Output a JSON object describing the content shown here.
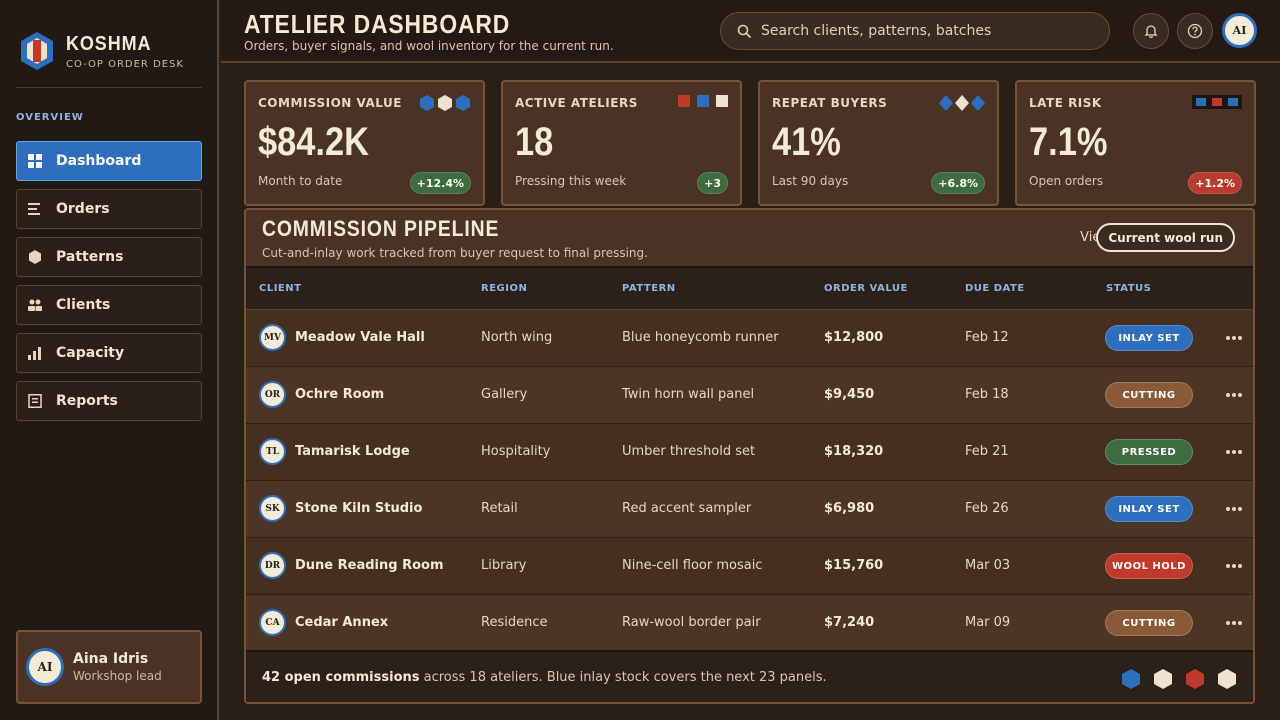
{
  "brand": {
    "name": "KOSHMA",
    "subtitle": "CO-OP ORDER DESK"
  },
  "sidebar": {
    "section_label": "OVERVIEW",
    "items": [
      {
        "label": "Dashboard",
        "icon": "grid-icon",
        "active": true
      },
      {
        "label": "Orders",
        "icon": "list-icon",
        "active": false
      },
      {
        "label": "Patterns",
        "icon": "hexagon-icon",
        "active": false
      },
      {
        "label": "Clients",
        "icon": "users-icon",
        "active": false
      },
      {
        "label": "Capacity",
        "icon": "bar-chart-icon",
        "active": false
      },
      {
        "label": "Reports",
        "icon": "report-icon",
        "active": false
      }
    ],
    "user": {
      "initials": "AI",
      "name": "Aina Idris",
      "role": "Workshop lead"
    }
  },
  "header": {
    "title": "ATELIER DASHBOARD",
    "subtitle": "Orders, buyer signals, and wool inventory for the current run.",
    "search_placeholder": "Search clients, patterns, batches",
    "avatar_initials": "AI"
  },
  "kpis": [
    {
      "title": "COMMISSION VALUE",
      "value": "$84.2K",
      "note": "Month to date",
      "delta": "+12.4%",
      "delta_tone": "positive"
    },
    {
      "title": "ACTIVE ATELIERS",
      "value": "18",
      "note": "Pressing this week",
      "delta": "+3",
      "delta_tone": "positive"
    },
    {
      "title": "REPEAT BUYERS",
      "value": "41%",
      "note": "Last 90 days",
      "delta": "+6.8%",
      "delta_tone": "positive"
    },
    {
      "title": "LATE RISK",
      "value": "7.1%",
      "note": "Open orders",
      "delta": "+1.2%",
      "delta_tone": "negative"
    }
  ],
  "pipeline": {
    "title": "COMMISSION PIPELINE",
    "subtitle": "Cut-and-inlay work tracked from buyer request to final pressing.",
    "view_label": "View",
    "view_value": "Current wool run",
    "columns": [
      "CLIENT",
      "REGION",
      "PATTERN",
      "ORDER VALUE",
      "DUE DATE",
      "STATUS"
    ],
    "rows": [
      {
        "initials": "MV",
        "client": "Meadow Vale Hall",
        "region": "North wing",
        "pattern": "Blue honeycomb runner",
        "value": "$12,800",
        "due": "Feb 12",
        "status": "INLAY SET",
        "status_tone": "blue"
      },
      {
        "initials": "OR",
        "client": "Ochre Room",
        "region": "Gallery",
        "pattern": "Twin horn wall panel",
        "value": "$9,450",
        "due": "Feb 18",
        "status": "CUTTING",
        "status_tone": "brown"
      },
      {
        "initials": "TL",
        "client": "Tamarisk Lodge",
        "region": "Hospitality",
        "pattern": "Umber threshold set",
        "value": "$18,320",
        "due": "Feb 21",
        "status": "PRESSED",
        "status_tone": "green"
      },
      {
        "initials": "SK",
        "client": "Stone Kiln Studio",
        "region": "Retail",
        "pattern": "Red accent sampler",
        "value": "$6,980",
        "due": "Feb 26",
        "status": "INLAY SET",
        "status_tone": "blue"
      },
      {
        "initials": "DR",
        "client": "Dune Reading Room",
        "region": "Library",
        "pattern": "Nine-cell floor mosaic",
        "value": "$15,760",
        "due": "Mar 03",
        "status": "WOOL HOLD",
        "status_tone": "red"
      },
      {
        "initials": "CA",
        "client": "Cedar Annex",
        "region": "Residence",
        "pattern": "Raw-wool border pair",
        "value": "$7,240",
        "due": "Mar 09",
        "status": "CUTTING",
        "status_tone": "brown"
      }
    ],
    "footer": {
      "highlight": "42 open commissions",
      "text": " across 18 ateliers. Blue inlay stock covers the next 23 panels."
    }
  },
  "colors": {
    "blue": "#2e6fbd",
    "brown": "#8a5a36",
    "green": "#3e6b3f",
    "red": "#c0392b",
    "cream": "#ece2cf",
    "positive": "#3e6b3f",
    "negative": "#b83a30"
  }
}
